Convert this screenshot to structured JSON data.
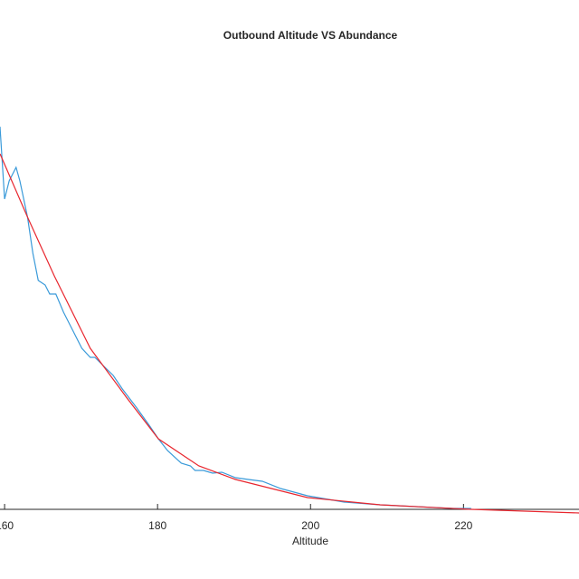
{
  "chart_data": {
    "type": "line",
    "title": "Outbound Altitude VS Abundance",
    "xlabel": "Altitude",
    "xlim": [
      159.4,
      235.1
    ],
    "xticks": [
      160,
      180,
      200,
      220
    ],
    "ylim": [
      0,
      100
    ],
    "series": [
      {
        "color": "#3a9ad9",
        "x": [
          159.4,
          160.0,
          160.6,
          161.5,
          162.0,
          163.0,
          163.7,
          164.4,
          165.3,
          165.9,
          166.7,
          167.7,
          168.9,
          170.1,
          171.2,
          171.8,
          173.0,
          174.2,
          175.4,
          177.2,
          178.9,
          180.1,
          181.3,
          183.1,
          184.3,
          184.9,
          186.0,
          187.2,
          188.4,
          190.2,
          191.9,
          193.7,
          196.1,
          199.6,
          204.4,
          209.1,
          213.8,
          218.6,
          221.0
        ],
        "values": [
          84.6,
          68.6,
          72.6,
          75.6,
          72.6,
          64.6,
          56.6,
          50.6,
          49.6,
          47.6,
          47.6,
          43.6,
          39.6,
          35.6,
          33.6,
          33.6,
          31.6,
          29.6,
          26.6,
          22.6,
          18.6,
          15.6,
          13,
          10.2,
          9.6,
          8.6,
          8.6,
          8,
          8.2,
          7,
          6.6,
          6.2,
          4.6,
          3,
          1.6,
          1,
          0.6,
          0.2,
          0.2
        ]
      },
      {
        "color": "#e8262e",
        "x": [
          159.4,
          163.0,
          166.5,
          171.2,
          176.0,
          180.1,
          185.4,
          190.2,
          199.6,
          209.1,
          221.0,
          235.1
        ],
        "values": [
          78.6,
          64.6,
          51.6,
          35.6,
          24.6,
          15.6,
          9.6,
          6.6,
          2.6,
          1,
          0,
          -0.8
        ]
      }
    ]
  }
}
